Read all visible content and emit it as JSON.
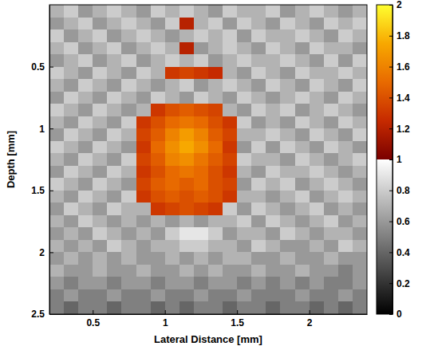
{
  "chart_data": {
    "type": "heatmap",
    "xlabel": "Lateral Distance [mm]",
    "ylabel": "Depth [mm]",
    "x": [
      0.25,
      0.35,
      0.45,
      0.55,
      0.65,
      0.75,
      0.85,
      0.95,
      1.05,
      1.15,
      1.25,
      1.35,
      1.45,
      1.55,
      1.65,
      1.75,
      1.85,
      1.95,
      2.05,
      2.15,
      2.25,
      2.35
    ],
    "y": [
      0.05,
      0.15,
      0.25,
      0.35,
      0.45,
      0.55,
      0.65,
      0.75,
      0.85,
      0.95,
      1.05,
      1.15,
      1.25,
      1.35,
      1.45,
      1.55,
      1.65,
      1.75,
      1.85,
      1.95,
      2.05,
      2.15,
      2.25,
      2.35,
      2.45
    ],
    "z": [
      [
        0.7,
        0.8,
        0.6,
        0.7,
        0.8,
        0.7,
        0.6,
        0.8,
        0.7,
        0.8,
        0.7,
        0.6,
        0.8,
        0.7,
        0.7,
        0.8,
        0.6,
        0.7,
        0.8,
        0.7,
        0.6,
        0.7
      ],
      [
        0.6,
        0.7,
        0.8,
        0.6,
        0.7,
        0.8,
        0.7,
        0.6,
        0.8,
        1.2,
        0.7,
        0.8,
        0.6,
        0.8,
        0.7,
        0.6,
        0.8,
        0.7,
        0.6,
        0.8,
        0.7,
        0.8
      ],
      [
        0.8,
        0.6,
        0.7,
        0.8,
        0.6,
        0.7,
        0.8,
        0.7,
        0.6,
        0.7,
        0.8,
        0.7,
        0.8,
        0.6,
        0.8,
        0.7,
        0.7,
        0.8,
        0.7,
        0.6,
        0.8,
        0.7
      ],
      [
        0.7,
        0.8,
        0.6,
        0.7,
        0.8,
        0.6,
        0.7,
        0.8,
        0.7,
        1.2,
        0.6,
        0.7,
        0.8,
        0.7,
        0.6,
        0.8,
        0.7,
        0.6,
        0.8,
        0.7,
        0.7,
        0.6
      ],
      [
        0.6,
        0.7,
        0.8,
        0.6,
        0.7,
        0.8,
        0.6,
        0.7,
        0.8,
        0.7,
        0.8,
        0.6,
        0.7,
        0.8,
        0.7,
        0.7,
        0.8,
        0.7,
        0.6,
        0.8,
        0.6,
        0.8
      ],
      [
        0.8,
        0.7,
        0.6,
        0.8,
        0.7,
        0.6,
        0.8,
        0.7,
        1.3,
        1.35,
        1.3,
        1.25,
        0.7,
        0.6,
        0.8,
        0.7,
        0.6,
        0.8,
        0.7,
        0.7,
        0.8,
        0.7
      ],
      [
        0.7,
        0.6,
        0.8,
        0.7,
        0.6,
        0.8,
        0.7,
        0.6,
        0.7,
        0.8,
        0.6,
        0.7,
        0.8,
        0.7,
        0.6,
        0.8,
        0.7,
        0.6,
        0.8,
        0.7,
        0.6,
        0.8
      ],
      [
        0.6,
        0.8,
        0.7,
        0.6,
        0.8,
        0.7,
        0.6,
        0.8,
        0.7,
        0.6,
        0.8,
        0.7,
        0.6,
        0.8,
        0.7,
        0.6,
        0.7,
        0.8,
        0.7,
        0.6,
        0.8,
        0.7
      ],
      [
        0.8,
        0.7,
        0.6,
        0.8,
        0.7,
        0.6,
        0.7,
        1.3,
        1.4,
        1.45,
        1.4,
        1.35,
        0.7,
        0.6,
        0.8,
        0.7,
        0.8,
        0.6,
        0.7,
        0.8,
        0.7,
        0.6
      ],
      [
        0.7,
        0.6,
        0.8,
        0.7,
        0.6,
        0.8,
        1.3,
        1.4,
        1.5,
        1.55,
        1.5,
        1.4,
        1.3,
        0.8,
        0.6,
        0.7,
        0.6,
        0.8,
        0.7,
        0.6,
        0.8,
        0.7
      ],
      [
        0.6,
        0.8,
        0.7,
        0.6,
        0.8,
        0.7,
        1.35,
        1.45,
        1.6,
        1.7,
        1.6,
        1.45,
        1.35,
        0.7,
        0.7,
        0.8,
        0.7,
        0.6,
        0.8,
        0.7,
        0.6,
        0.8
      ],
      [
        0.8,
        0.7,
        0.6,
        0.8,
        0.7,
        0.6,
        1.3,
        1.5,
        1.65,
        1.75,
        1.65,
        1.5,
        1.3,
        0.6,
        0.8,
        0.6,
        0.8,
        0.7,
        0.6,
        0.8,
        0.7,
        0.6
      ],
      [
        0.7,
        0.6,
        0.8,
        0.7,
        0.6,
        0.8,
        1.35,
        1.45,
        1.6,
        1.65,
        1.55,
        1.45,
        1.35,
        0.8,
        0.7,
        0.7,
        0.6,
        0.8,
        0.7,
        0.6,
        0.7,
        0.8
      ],
      [
        0.6,
        0.8,
        0.7,
        0.6,
        0.8,
        0.7,
        1.3,
        1.4,
        1.5,
        1.55,
        1.5,
        1.4,
        1.3,
        0.7,
        0.6,
        0.8,
        0.7,
        0.7,
        0.8,
        0.7,
        0.6,
        0.7
      ],
      [
        0.8,
        0.7,
        0.6,
        0.8,
        0.7,
        0.6,
        1.35,
        1.45,
        1.5,
        1.45,
        1.5,
        1.4,
        1.35,
        0.6,
        0.8,
        0.7,
        0.8,
        0.6,
        0.7,
        0.8,
        0.7,
        0.6
      ],
      [
        0.7,
        0.6,
        0.8,
        0.7,
        0.6,
        0.8,
        1.3,
        1.4,
        1.45,
        1.4,
        1.45,
        1.4,
        1.3,
        0.7,
        0.7,
        0.6,
        0.7,
        0.8,
        0.6,
        0.7,
        0.8,
        0.7
      ],
      [
        0.6,
        0.8,
        0.7,
        0.6,
        0.8,
        0.7,
        0.7,
        1.3,
        1.35,
        1.4,
        1.35,
        1.3,
        0.8,
        0.6,
        0.8,
        0.7,
        0.6,
        0.7,
        0.8,
        0.6,
        0.7,
        0.6
      ],
      [
        0.7,
        0.6,
        0.8,
        0.7,
        0.6,
        0.7,
        0.6,
        0.7,
        0.6,
        0.7,
        0.6,
        0.7,
        0.7,
        0.8,
        0.6,
        0.8,
        0.7,
        0.6,
        0.7,
        0.8,
        0.6,
        0.7
      ],
      [
        0.6,
        0.7,
        0.6,
        0.8,
        0.7,
        0.6,
        0.7,
        0.6,
        0.8,
        0.9,
        0.9,
        0.8,
        0.6,
        0.7,
        0.7,
        0.6,
        0.8,
        0.7,
        0.6,
        0.7,
        0.7,
        0.6
      ],
      [
        0.7,
        0.6,
        0.7,
        0.6,
        0.8,
        0.7,
        0.6,
        0.7,
        0.7,
        0.8,
        0.8,
        0.7,
        0.7,
        0.6,
        0.8,
        0.7,
        0.6,
        0.6,
        0.7,
        0.6,
        0.8,
        0.7
      ],
      [
        0.6,
        0.7,
        0.6,
        0.7,
        0.6,
        0.7,
        0.6,
        0.6,
        0.7,
        0.6,
        0.7,
        0.6,
        0.7,
        0.7,
        0.6,
        0.6,
        0.7,
        0.6,
        0.6,
        0.7,
        0.6,
        0.6
      ],
      [
        0.7,
        0.6,
        0.6,
        0.7,
        0.6,
        0.6,
        0.7,
        0.6,
        0.6,
        0.7,
        0.6,
        0.7,
        0.6,
        0.6,
        0.7,
        0.6,
        0.6,
        0.7,
        0.6,
        0.6,
        0.5,
        0.6
      ],
      [
        0.6,
        0.5,
        0.6,
        0.6,
        0.5,
        0.6,
        0.6,
        0.5,
        0.6,
        0.6,
        0.5,
        0.6,
        0.6,
        0.5,
        0.6,
        0.5,
        0.6,
        0.5,
        0.6,
        0.5,
        0.5,
        0.6
      ],
      [
        0.5,
        0.6,
        0.5,
        0.5,
        0.6,
        0.5,
        0.5,
        0.6,
        0.5,
        0.5,
        0.6,
        0.5,
        0.5,
        0.6,
        0.5,
        0.5,
        0.5,
        0.6,
        0.5,
        0.5,
        0.6,
        0.5
      ],
      [
        0.5,
        0.4,
        0.5,
        0.5,
        0.4,
        0.5,
        0.5,
        0.4,
        0.5,
        0.4,
        0.5,
        0.5,
        0.4,
        0.5,
        0.5,
        0.4,
        0.5,
        0.5,
        0.4,
        0.5,
        0.4,
        0.5
      ]
    ],
    "xlim": [
      0.2,
      2.4
    ],
    "ylim": [
      0,
      2.5
    ],
    "xticks": [
      0.5,
      1,
      1.5,
      2
    ],
    "yticks": [
      0.5,
      1,
      1.5,
      2,
      2.5
    ],
    "colorbar": {
      "range": [
        0,
        2
      ],
      "ticks": [
        0,
        0.2,
        0.4,
        0.6,
        0.8,
        1,
        1.2,
        1.4,
        1.6,
        1.8,
        2
      ]
    }
  }
}
